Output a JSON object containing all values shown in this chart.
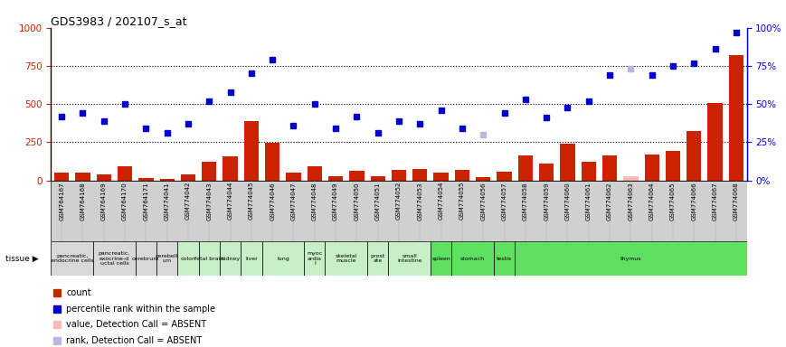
{
  "title": "GDS3983 / 202107_s_at",
  "samples": [
    "GSM764167",
    "GSM764168",
    "GSM764169",
    "GSM764170",
    "GSM764171",
    "GSM774041",
    "GSM774042",
    "GSM774043",
    "GSM774044",
    "GSM774045",
    "GSM774046",
    "GSM774047",
    "GSM774048",
    "GSM774049",
    "GSM774050",
    "GSM774051",
    "GSM774052",
    "GSM774053",
    "GSM774054",
    "GSM774055",
    "GSM774056",
    "GSM774057",
    "GSM774058",
    "GSM774059",
    "GSM774060",
    "GSM774061",
    "GSM774062",
    "GSM774063",
    "GSM774064",
    "GSM774065",
    "GSM774066",
    "GSM774067",
    "GSM774068"
  ],
  "counts": [
    50,
    50,
    40,
    90,
    15,
    10,
    40,
    120,
    160,
    390,
    245,
    50,
    95,
    30,
    65,
    30,
    70,
    75,
    50,
    70,
    20,
    55,
    165,
    110,
    240,
    125,
    165,
    25,
    170,
    195,
    325,
    505,
    820
  ],
  "percentile_ranks": [
    42,
    44,
    39,
    50,
    34,
    31,
    37,
    52,
    58,
    70,
    79,
    36,
    50,
    34,
    42,
    31,
    39,
    37,
    46,
    34,
    30,
    44,
    53,
    41,
    48,
    52,
    69,
    73,
    69,
    75,
    77,
    86,
    97
  ],
  "absent_count_indices": [
    27
  ],
  "absent_rank_indices": [
    20,
    27
  ],
  "tissues_mapped": [
    {
      "label": "pancreatic,\nendocrine cells",
      "start": 0,
      "end": 1,
      "color": "#d8d8d8"
    },
    {
      "label": "pancreatic,\nexocrine-d\nuctal cells",
      "start": 2,
      "end": 3,
      "color": "#d8d8d8"
    },
    {
      "label": "cerebrum",
      "start": 4,
      "end": 4,
      "color": "#d8d8d8"
    },
    {
      "label": "cerebell\num",
      "start": 5,
      "end": 5,
      "color": "#d8d8d8"
    },
    {
      "label": "colon",
      "start": 6,
      "end": 6,
      "color": "#c8f0c8"
    },
    {
      "label": "fetal brain",
      "start": 7,
      "end": 7,
      "color": "#c8f0c8"
    },
    {
      "label": "kidney",
      "start": 8,
      "end": 8,
      "color": "#c8f0c8"
    },
    {
      "label": "liver",
      "start": 9,
      "end": 9,
      "color": "#c8f0c8"
    },
    {
      "label": "lung",
      "start": 10,
      "end": 11,
      "color": "#c8f0c8"
    },
    {
      "label": "myoc\nardia\nl",
      "start": 12,
      "end": 12,
      "color": "#c8f0c8"
    },
    {
      "label": "skeletal\nmuscle",
      "start": 13,
      "end": 14,
      "color": "#c8f0c8"
    },
    {
      "label": "prost\nate",
      "start": 15,
      "end": 15,
      "color": "#c8f0c8"
    },
    {
      "label": "small\nintestine",
      "start": 16,
      "end": 17,
      "color": "#c8f0c8"
    },
    {
      "label": "spleen",
      "start": 18,
      "end": 18,
      "color": "#60e060"
    },
    {
      "label": "stomach",
      "start": 19,
      "end": 20,
      "color": "#60e060"
    },
    {
      "label": "testis",
      "start": 21,
      "end": 21,
      "color": "#60e060"
    },
    {
      "label": "thymus",
      "start": 22,
      "end": 32,
      "color": "#60e060"
    }
  ],
  "bar_color": "#cc2200",
  "dot_color": "#0000cc",
  "absent_bar_color": "#ffb8b8",
  "absent_dot_color": "#b8b8dd",
  "ylim_left": [
    0,
    1000
  ],
  "ylim_right": [
    0,
    100
  ],
  "yticks_left": [
    0,
    250,
    500,
    750,
    1000
  ],
  "yticks_right": [
    0,
    25,
    50,
    75,
    100
  ]
}
